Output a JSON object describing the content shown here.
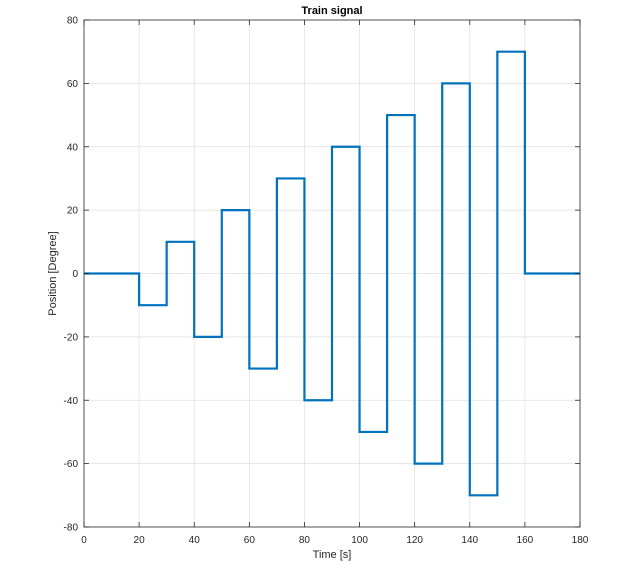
{
  "chart_data": {
    "type": "line",
    "title": "Train signal",
    "xlabel": "Time [s]",
    "ylabel": "Position [Degree]",
    "xlim": [
      0,
      180
    ],
    "ylim": [
      -80,
      80
    ],
    "xticks": [
      0,
      20,
      40,
      60,
      80,
      100,
      120,
      140,
      160,
      180
    ],
    "yticks": [
      -80,
      -60,
      -40,
      -20,
      0,
      20,
      40,
      60,
      80
    ],
    "grid": true,
    "step": true,
    "line_color": "#0072BD",
    "series": [
      {
        "x": [
          0,
          20,
          30,
          40,
          50,
          60,
          70,
          80,
          90,
          100,
          110,
          120,
          130,
          140,
          150,
          160,
          180
        ],
        "values": [
          0,
          -10,
          10,
          -20,
          20,
          -30,
          30,
          -40,
          40,
          -50,
          50,
          -60,
          60,
          -70,
          70,
          0,
          0
        ]
      }
    ]
  }
}
